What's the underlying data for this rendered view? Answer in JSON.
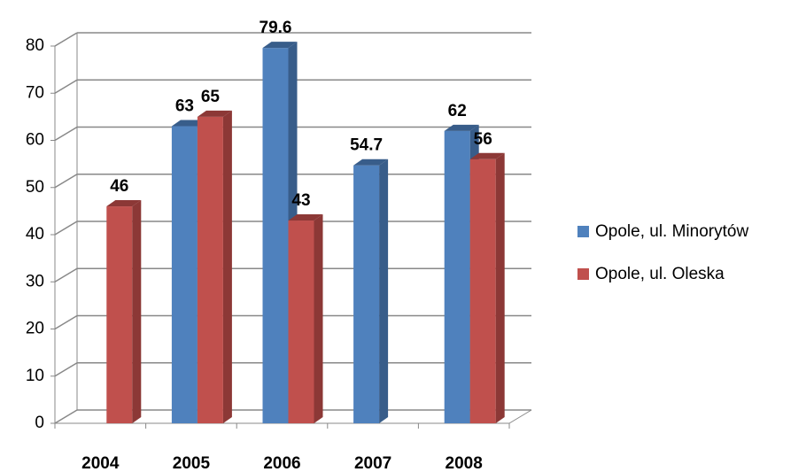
{
  "chart_data": {
    "type": "bar3d",
    "categories": [
      "2004",
      "2005",
      "2006",
      "2007",
      "2008"
    ],
    "series": [
      {
        "name": "Opole, ul. Minorytów",
        "color": "#4f81bd",
        "side": "#385d8a",
        "values": [
          null,
          63,
          79.6,
          54.7,
          62
        ]
      },
      {
        "name": "Opole, ul. Oleska",
        "color": "#c0504d",
        "side": "#8c3836",
        "values": [
          46,
          65,
          43,
          null,
          56
        ]
      }
    ],
    "ylim": [
      0,
      80
    ],
    "yticks": [
      0,
      10,
      20,
      30,
      40,
      50,
      60,
      70,
      80
    ],
    "grid": true,
    "legend": "right"
  }
}
